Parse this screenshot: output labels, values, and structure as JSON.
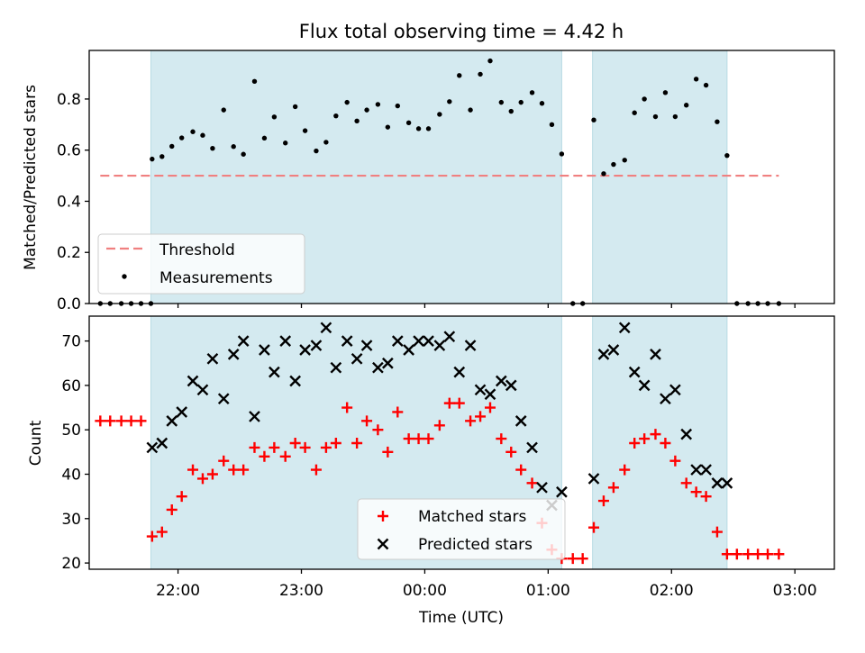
{
  "chart_data": {
    "title": "Flux total observing time = 4.42 h",
    "x_unit": "hours after 00:00 UTC (negative = previous day)",
    "xlabel": "Time (UTC)",
    "xlim": [
      -2.72,
      3.32
    ],
    "xticks": [
      {
        "value": -2,
        "label": "22:00"
      },
      {
        "value": -1,
        "label": "23:00"
      },
      {
        "value": 0,
        "label": "00:00"
      },
      {
        "value": 1,
        "label": "01:00"
      },
      {
        "value": 2,
        "label": "02:00"
      },
      {
        "value": 3,
        "label": "03:00"
      }
    ],
    "observing_windows": [
      {
        "start": -2.22,
        "end": 1.11
      },
      {
        "start": 1.36,
        "end": 2.45
      }
    ],
    "colors": {
      "window": "#d4eaf0",
      "threshold": "#f08080",
      "measurements": "#000000",
      "matched": "#ff0000",
      "predicted": "#000000"
    },
    "panels": [
      {
        "type": "scatter",
        "ylabel": "Matched/Predicted stars",
        "ylim": [
          0.0,
          0.99
        ],
        "yticks": [
          {
            "value": 0.0,
            "label": "0.0"
          },
          {
            "value": 0.2,
            "label": "0.2"
          },
          {
            "value": 0.4,
            "label": "0.4"
          },
          {
            "value": 0.6,
            "label": "0.6"
          },
          {
            "value": 0.8,
            "label": "0.8"
          }
        ],
        "threshold": {
          "name": "Threshold",
          "y": 0.5,
          "x_range": [
            -2.63,
            2.87
          ]
        },
        "legend_position": "lower-left",
        "series": [
          {
            "name": "Measurements",
            "marker": "dot",
            "points": [
              [
                -2.63,
                0.0
              ],
              [
                -2.55,
                0.0
              ],
              [
                -2.46,
                0.0
              ],
              [
                -2.38,
                0.0
              ],
              [
                -2.3,
                0.0
              ],
              [
                -2.22,
                0.0
              ],
              [
                -2.21,
                0.565
              ],
              [
                -2.13,
                0.575
              ],
              [
                -2.05,
                0.615
              ],
              [
                -1.97,
                0.648
              ],
              [
                -1.88,
                0.672
              ],
              [
                -1.8,
                0.658
              ],
              [
                -1.72,
                0.607
              ],
              [
                -1.63,
                0.757
              ],
              [
                -1.55,
                0.614
              ],
              [
                -1.47,
                0.584
              ],
              [
                -1.38,
                0.869
              ],
              [
                -1.3,
                0.647
              ],
              [
                -1.22,
                0.73
              ],
              [
                -1.13,
                0.628
              ],
              [
                -1.05,
                0.77
              ],
              [
                -0.97,
                0.676
              ],
              [
                -0.88,
                0.597
              ],
              [
                -0.8,
                0.631
              ],
              [
                -0.72,
                0.734
              ],
              [
                -0.63,
                0.787
              ],
              [
                -0.55,
                0.714
              ],
              [
                -0.47,
                0.757
              ],
              [
                -0.38,
                0.779
              ],
              [
                -0.3,
                0.69
              ],
              [
                -0.22,
                0.773
              ],
              [
                -0.13,
                0.707
              ],
              [
                -0.05,
                0.684
              ],
              [
                0.03,
                0.684
              ],
              [
                0.12,
                0.74
              ],
              [
                0.2,
                0.79
              ],
              [
                0.28,
                0.892
              ],
              [
                0.37,
                0.757
              ],
              [
                0.45,
                0.897
              ],
              [
                0.53,
                0.949
              ],
              [
                0.62,
                0.787
              ],
              [
                0.7,
                0.752
              ],
              [
                0.78,
                0.787
              ],
              [
                0.87,
                0.825
              ],
              [
                0.95,
                0.783
              ],
              [
                1.03,
                0.7
              ],
              [
                1.11,
                0.585
              ],
              [
                1.2,
                0.0
              ],
              [
                1.28,
                0.0
              ],
              [
                1.37,
                0.718
              ],
              [
                1.45,
                0.508
              ],
              [
                1.53,
                0.544
              ],
              [
                1.62,
                0.561
              ],
              [
                1.7,
                0.746
              ],
              [
                1.78,
                0.8
              ],
              [
                1.87,
                0.731
              ],
              [
                1.95,
                0.825
              ],
              [
                2.03,
                0.731
              ],
              [
                2.12,
                0.776
              ],
              [
                2.2,
                0.878
              ],
              [
                2.28,
                0.854
              ],
              [
                2.37,
                0.711
              ],
              [
                2.45,
                0.579
              ],
              [
                2.53,
                0.0
              ],
              [
                2.62,
                0.0
              ],
              [
                2.7,
                0.0
              ],
              [
                2.78,
                0.0
              ],
              [
                2.87,
                0.0
              ]
            ]
          }
        ]
      },
      {
        "type": "scatter",
        "ylabel": "Count",
        "ylim": [
          18.6,
          75.6
        ],
        "yticks": [
          {
            "value": 20,
            "label": "20"
          },
          {
            "value": 30,
            "label": "30"
          },
          {
            "value": 40,
            "label": "40"
          },
          {
            "value": 50,
            "label": "50"
          },
          {
            "value": 60,
            "label": "60"
          },
          {
            "value": 70,
            "label": "70"
          }
        ],
        "legend_position": "lower-center",
        "series": [
          {
            "name": "Matched stars",
            "marker": "plus",
            "points": [
              [
                -2.63,
                52
              ],
              [
                -2.55,
                52
              ],
              [
                -2.46,
                52
              ],
              [
                -2.38,
                52
              ],
              [
                -2.3,
                52
              ],
              [
                -2.21,
                26
              ],
              [
                -2.13,
                27
              ],
              [
                -2.05,
                32
              ],
              [
                -1.97,
                35
              ],
              [
                -1.88,
                41
              ],
              [
                -1.8,
                39
              ],
              [
                -1.72,
                40
              ],
              [
                -1.63,
                43
              ],
              [
                -1.55,
                41
              ],
              [
                -1.47,
                41
              ],
              [
                -1.38,
                46
              ],
              [
                -1.3,
                44
              ],
              [
                -1.22,
                46
              ],
              [
                -1.13,
                44
              ],
              [
                -1.05,
                47
              ],
              [
                -0.97,
                46
              ],
              [
                -0.88,
                41
              ],
              [
                -0.8,
                46
              ],
              [
                -0.72,
                47
              ],
              [
                -0.63,
                55
              ],
              [
                -0.55,
                47
              ],
              [
                -0.47,
                52
              ],
              [
                -0.38,
                50
              ],
              [
                -0.3,
                45
              ],
              [
                -0.22,
                54
              ],
              [
                -0.13,
                48
              ],
              [
                -0.05,
                48
              ],
              [
                0.03,
                48
              ],
              [
                0.12,
                51
              ],
              [
                0.2,
                56
              ],
              [
                0.28,
                56
              ],
              [
                0.37,
                52
              ],
              [
                0.45,
                53
              ],
              [
                0.53,
                55
              ],
              [
                0.62,
                48
              ],
              [
                0.7,
                45
              ],
              [
                0.78,
                41
              ],
              [
                0.87,
                38
              ],
              [
                0.95,
                29
              ],
              [
                1.03,
                23
              ],
              [
                1.11,
                21
              ],
              [
                1.2,
                21
              ],
              [
                1.28,
                21
              ],
              [
                1.37,
                28
              ],
              [
                1.45,
                34
              ],
              [
                1.53,
                37
              ],
              [
                1.62,
                41
              ],
              [
                1.7,
                47
              ],
              [
                1.78,
                48
              ],
              [
                1.87,
                49
              ],
              [
                1.95,
                47
              ],
              [
                2.03,
                43
              ],
              [
                2.12,
                38
              ],
              [
                2.2,
                36
              ],
              [
                2.28,
                35
              ],
              [
                2.37,
                27
              ],
              [
                2.45,
                22
              ],
              [
                2.53,
                22
              ],
              [
                2.62,
                22
              ],
              [
                2.7,
                22
              ],
              [
                2.78,
                22
              ],
              [
                2.87,
                22
              ]
            ]
          },
          {
            "name": "Predicted stars",
            "marker": "x",
            "points": [
              [
                -2.21,
                46
              ],
              [
                -2.13,
                47
              ],
              [
                -2.05,
                52
              ],
              [
                -1.97,
                54
              ],
              [
                -1.88,
                61
              ],
              [
                -1.8,
                59
              ],
              [
                -1.72,
                66
              ],
              [
                -1.63,
                57
              ],
              [
                -1.55,
                67
              ],
              [
                -1.47,
                70
              ],
              [
                -1.38,
                53
              ],
              [
                -1.3,
                68
              ],
              [
                -1.22,
                63
              ],
              [
                -1.13,
                70
              ],
              [
                -1.05,
                61
              ],
              [
                -0.97,
                68
              ],
              [
                -0.88,
                69
              ],
              [
                -0.8,
                73
              ],
              [
                -0.72,
                64
              ],
              [
                -0.63,
                70
              ],
              [
                -0.55,
                66
              ],
              [
                -0.47,
                69
              ],
              [
                -0.38,
                64
              ],
              [
                -0.3,
                65
              ],
              [
                -0.22,
                70
              ],
              [
                -0.13,
                68
              ],
              [
                -0.05,
                70
              ],
              [
                0.03,
                70
              ],
              [
                0.12,
                69
              ],
              [
                0.2,
                71
              ],
              [
                0.28,
                63
              ],
              [
                0.37,
                69
              ],
              [
                0.45,
                59
              ],
              [
                0.53,
                58
              ],
              [
                0.62,
                61
              ],
              [
                0.7,
                60
              ],
              [
                0.78,
                52
              ],
              [
                0.87,
                46
              ],
              [
                0.95,
                37
              ],
              [
                1.03,
                33
              ],
              [
                1.11,
                36
              ],
              [
                1.37,
                39
              ],
              [
                1.45,
                67
              ],
              [
                1.53,
                68
              ],
              [
                1.62,
                73
              ],
              [
                1.7,
                63
              ],
              [
                1.78,
                60
              ],
              [
                1.87,
                67
              ],
              [
                1.95,
                57
              ],
              [
                2.03,
                59
              ],
              [
                2.12,
                49
              ],
              [
                2.2,
                41
              ],
              [
                2.28,
                41
              ],
              [
                2.37,
                38
              ],
              [
                2.45,
                38
              ]
            ]
          }
        ]
      }
    ]
  }
}
